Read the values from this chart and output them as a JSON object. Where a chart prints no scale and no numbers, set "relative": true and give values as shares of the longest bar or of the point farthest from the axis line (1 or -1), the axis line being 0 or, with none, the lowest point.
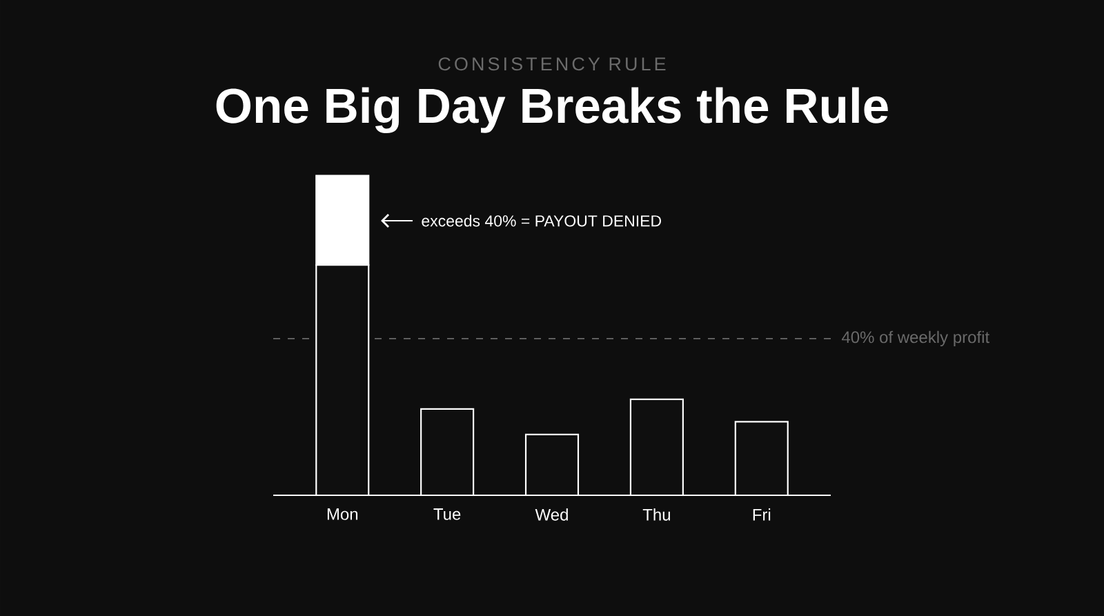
{
  "chart_data": {
    "type": "bar",
    "subtitle": "CONSISTENCY RULE",
    "title": "One Big Day Breaks the Rule",
    "categories": [
      "Mon",
      "Tue",
      "Wed",
      "Thu",
      "Fri"
    ],
    "relative": true,
    "stacked": true,
    "series": [
      {
        "color": "#0f0f0f",
        "values": [
          0.72,
          0.27,
          0.19,
          0.3,
          0.23
        ]
      },
      {
        "color": "#ffffff",
        "values": [
          0.28,
          null,
          null,
          null,
          null
        ]
      }
    ],
    "ref_lines": [
      {
        "axis": "y",
        "value": 0.49,
        "label": "40% of weekly profit",
        "color": "#6a6a6a",
        "line_style": "dashed"
      }
    ],
    "annotations": [
      "exceeds 40% = PAYOUT DENIED"
    ]
  }
}
